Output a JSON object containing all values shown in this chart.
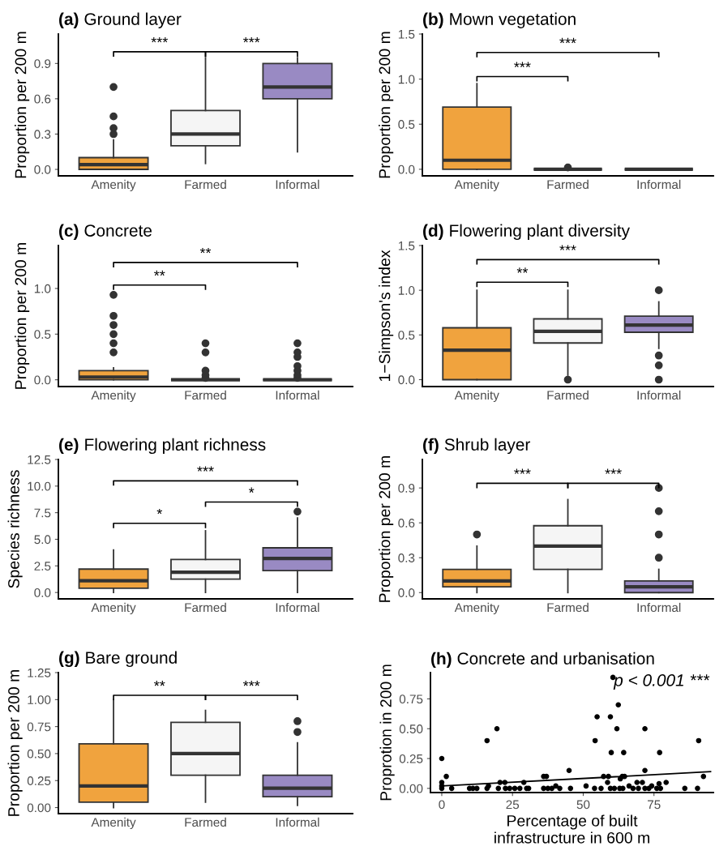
{
  "chart_data": [
    {
      "type": "box",
      "title": "(a) Ground layer",
      "ylabel": "Proportion per 200 m",
      "categories": [
        "Amenity",
        "Farmed",
        "Informal"
      ],
      "colors": [
        "#f0a33e",
        "#f5f5f5",
        "#998ac3"
      ],
      "ylim": [
        -0.055,
        1.15
      ],
      "yticks": [
        {
          "value": 0,
          "label": "0.0"
        },
        {
          "value": 0.3,
          "label": "0.3"
        },
        {
          "value": 0.6,
          "label": "0.6"
        },
        {
          "value": 0.9,
          "label": "0.9"
        }
      ],
      "annotations": [
        "***",
        "***"
      ],
      "boxes": [
        {
          "low": 0,
          "q1": 0,
          "median": 0.04,
          "q3": 0.1,
          "high": 0.25,
          "outliers": [
            0.3,
            0.35,
            0.45,
            0.7
          ]
        },
        {
          "low": 0.05,
          "q1": 0.2,
          "median": 0.3,
          "q3": 0.5,
          "high": 0.95
        },
        {
          "low": 0.15,
          "q1": 0.6,
          "median": 0.7,
          "q3": 0.9,
          "high": 0.95
        }
      ]
    },
    {
      "type": "box",
      "title": "(b) Mown vegetation",
      "ylabel": "Proportion per 200 m",
      "categories": [
        "Amenity",
        "Farmed",
        "Informal"
      ],
      "colors": [
        "#f0a33e",
        "#333333",
        "#333333"
      ],
      "ylim": [
        -0.073,
        1.5
      ],
      "yticks": [
        {
          "value": 0,
          "label": "0.0"
        },
        {
          "value": 0.5,
          "label": "0.5"
        },
        {
          "value": 1,
          "label": "1.0"
        },
        {
          "value": 1.5,
          "label": "1.5"
        }
      ],
      "annotations": [
        "***",
        "***"
      ],
      "boxes": [
        {
          "low": 0,
          "q1": 0,
          "median": 0.1,
          "q3": 0.69,
          "high": 0.95
        },
        {
          "low": 0,
          "q1": 0,
          "median": 0,
          "q3": 0,
          "high": 0,
          "outliers": [
            0.02
          ]
        },
        {
          "low": 0,
          "q1": 0,
          "median": 0,
          "q3": 0,
          "high": 0
        }
      ]
    },
    {
      "type": "box",
      "title": "(c) Concrete",
      "ylabel": "Proportion per 200 m",
      "categories": [
        "Amenity",
        "Farmed",
        "Informal"
      ],
      "colors": [
        "#f0a33e",
        "#333333",
        "#333333"
      ],
      "ylim": [
        -0.074,
        1.47
      ],
      "yticks": [
        {
          "value": 0,
          "label": "0.0"
        },
        {
          "value": 0.5,
          "label": "0.5"
        },
        {
          "value": 1,
          "label": "1.0"
        }
      ],
      "annotations": [
        "**",
        "**"
      ],
      "boxes": [
        {
          "low": 0,
          "q1": 0,
          "median": 0.03,
          "q3": 0.1,
          "high": 0.13,
          "outliers": [
            0.3,
            0.4,
            0.5,
            0.6,
            0.7,
            0.93
          ]
        },
        {
          "low": 0,
          "q1": 0,
          "median": 0,
          "q3": 0,
          "high": 0,
          "outliers": [
            0.02,
            0.05,
            0.1,
            0.3,
            0.4
          ]
        },
        {
          "low": 0,
          "q1": 0,
          "median": 0,
          "q3": 0,
          "high": 0,
          "outliers": [
            0.02,
            0.05,
            0.1,
            0.15,
            0.25,
            0.3,
            0.4
          ]
        }
      ]
    },
    {
      "type": "box",
      "title": "(d) Flowering plant diversity",
      "ylabel": "1−Simpson's index",
      "categories": [
        "Amenity",
        "Farmed",
        "Informal"
      ],
      "colors": [
        "#f0a33e",
        "#f5f5f5",
        "#998ac3"
      ],
      "ylim": [
        -0.077,
        1.5
      ],
      "yticks": [
        {
          "value": 0,
          "label": "0.0"
        },
        {
          "value": 0.5,
          "label": "0.5"
        },
        {
          "value": 1,
          "label": "1.0"
        },
        {
          "value": 1.5,
          "label": "1.5"
        }
      ],
      "annotations": [
        "***",
        "**"
      ],
      "boxes": [
        {
          "low": 0,
          "q1": 0,
          "median": 0.33,
          "q3": 0.58,
          "high": 1.0
        },
        {
          "low": 0.05,
          "q1": 0.41,
          "median": 0.54,
          "q3": 0.68,
          "high": 1.0,
          "outliers": [
            0
          ]
        },
        {
          "low": 0.35,
          "q1": 0.53,
          "median": 0.61,
          "q3": 0.71,
          "high": 0.87,
          "outliers": [
            0,
            0.16,
            0.27,
            1.0
          ]
        }
      ]
    },
    {
      "type": "box",
      "title": "(e) Flowering plant richness",
      "ylabel": "Species richness",
      "categories": [
        "Amenity",
        "Farmed",
        "Informal"
      ],
      "colors": [
        "#f0a33e",
        "#f5f5f5",
        "#998ac3"
      ],
      "ylim": [
        -0.6,
        12.5
      ],
      "yticks": [
        {
          "value": 0,
          "label": "0.0"
        },
        {
          "value": 2.5,
          "label": "2.5"
        },
        {
          "value": 5,
          "label": "5.0"
        },
        {
          "value": 7.5,
          "label": "7.5"
        },
        {
          "value": 10,
          "label": "10.0"
        },
        {
          "value": 12.5,
          "label": "12.5"
        }
      ],
      "annotations": [
        "***",
        "*",
        "*"
      ],
      "boxes": [
        {
          "low": 0,
          "q1": 0.4,
          "median": 1.1,
          "q3": 2.2,
          "high": 4.0
        },
        {
          "low": 0,
          "q1": 1.25,
          "median": 1.9,
          "q3": 3.1,
          "high": 5.8
        },
        {
          "low": 0,
          "q1": 2.05,
          "median": 3.2,
          "q3": 4.2,
          "high": 7.0,
          "outliers": [
            7.6
          ]
        }
      ]
    },
    {
      "type": "box",
      "title": "(f) Shrub layer",
      "ylabel": "Proportion per 200 m",
      "categories": [
        "Amenity",
        "Farmed",
        "Informal"
      ],
      "colors": [
        "#f0a33e",
        "#f5f5f5",
        "#998ac3"
      ],
      "ylim": [
        -0.054,
        1.145
      ],
      "yticks": [
        {
          "value": 0,
          "label": "0.0"
        },
        {
          "value": 0.3,
          "label": "0.3"
        },
        {
          "value": 0.6,
          "label": "0.6"
        },
        {
          "value": 0.9,
          "label": "0.9"
        }
      ],
      "annotations": [
        "***",
        "***"
      ],
      "boxes": [
        {
          "low": 0,
          "q1": 0.05,
          "median": 0.1,
          "q3": 0.2,
          "high": 0.4,
          "outliers": [
            0.5
          ]
        },
        {
          "low": 0,
          "q1": 0.2,
          "median": 0.4,
          "q3": 0.575,
          "high": 0.8
        },
        {
          "low": 0,
          "q1": 0,
          "median": 0.05,
          "q3": 0.1,
          "high": 0.2,
          "outliers": [
            0.3,
            0.5,
            0.7,
            0.9
          ]
        }
      ]
    },
    {
      "type": "box",
      "title": "(g) Bare ground",
      "ylabel": "Proportion per 200 m",
      "categories": [
        "Amenity",
        "Farmed",
        "Informal"
      ],
      "colors": [
        "#f0a33e",
        "#f5f5f5",
        "#998ac3"
      ],
      "ylim": [
        -0.056,
        1.25
      ],
      "yticks": [
        {
          "value": 0,
          "label": "0.00"
        },
        {
          "value": 0.25,
          "label": "0.25"
        },
        {
          "value": 0.5,
          "label": "0.50"
        },
        {
          "value": 0.75,
          "label": "0.75"
        },
        {
          "value": 1,
          "label": "1.00"
        },
        {
          "value": 1.25,
          "label": "1.25"
        }
      ],
      "annotations": [
        "**",
        "***"
      ],
      "boxes": [
        {
          "low": 0,
          "q1": 0.05,
          "median": 0.2,
          "q3": 0.59,
          "high": 1.0
        },
        {
          "low": 0.05,
          "q1": 0.3,
          "median": 0.5,
          "q3": 0.79,
          "high": 0.9
        },
        {
          "low": 0.02,
          "q1": 0.1,
          "median": 0.18,
          "q3": 0.3,
          "high": 0.6,
          "outliers": [
            0.7,
            0.8
          ]
        }
      ]
    },
    {
      "type": "scatter",
      "title": "(h) Concrete and urbanisation",
      "ylabel": "Proprotion in 200 m",
      "xlabel": "Percentage of built\ninfrastructure in 600 m",
      "xlim": [
        -4,
        96
      ],
      "xticks": [
        0,
        25,
        50,
        75
      ],
      "ylim": [
        -0.035,
        0.97
      ],
      "yticks": [
        {
          "value": 0,
          "label": "0.00"
        },
        {
          "value": 0.25,
          "label": "0.25"
        },
        {
          "value": 0.5,
          "label": "0.50"
        },
        {
          "value": 0.75,
          "label": "0.75"
        }
      ],
      "annotations": [
        "p < 0.001 ***"
      ],
      "series": [
        {
          "type": "scatter",
          "color": "#000000",
          "marker": "circle",
          "x": [
            0,
            0,
            0,
            0,
            1.6,
            3.5,
            9.8,
            11,
            12.4,
            16,
            16,
            16.5,
            19.5,
            20,
            20.6,
            22.3,
            22.5,
            24,
            25.8,
            27.6,
            29,
            30,
            30.7,
            36,
            37,
            36,
            37.5,
            38.9,
            40.3,
            41.7,
            45,
            45.5,
            51,
            54,
            54.2,
            54.9,
            56.3,
            57.2,
            58.6,
            58.9,
            59.6,
            59.9,
            60.5,
            61.9,
            62.4,
            59.6,
            61,
            62.9,
            64,
            63.1,
            63.8,
            64.3,
            64.6,
            66.2,
            67.6,
            69,
            69.5,
            70.9,
            71.8,
            71.8,
            71.8,
            73.2,
            74.2,
            76,
            76.8,
            77,
            77.3,
            79.3,
            85.9,
            90.4,
            90.8,
            92.5
          ],
          "values": [
            0.25,
            0.05,
            0.02,
            0,
            0.1,
            0,
            0,
            0,
            0,
            0.4,
            0,
            0.02,
            0.5,
            0,
            0.05,
            0.05,
            0,
            0,
            0,
            0,
            0.05,
            0,
            0,
            0.1,
            0.1,
            0,
            0,
            0,
            0.02,
            0,
            0.15,
            0,
            0.02,
            0,
            0.4,
            0.6,
            0,
            0.1,
            0.05,
            0.1,
            0.6,
            0.3,
            0.93,
            0.5,
            0.7,
            0,
            0,
            0,
            0,
            0.08,
            0.1,
            0.3,
            0.1,
            0.02,
            0,
            0.05,
            0,
            0.05,
            0.5,
            0.15,
            0,
            0,
            0.02,
            0,
            0.04,
            0.3,
            0,
            0.05,
            0,
            0,
            0.4,
            0.1
          ]
        },
        {
          "type": "line",
          "color": "#000000",
          "marker": "none",
          "x": [
            0,
            95
          ],
          "values": [
            0.02,
            0.14
          ]
        }
      ]
    }
  ]
}
